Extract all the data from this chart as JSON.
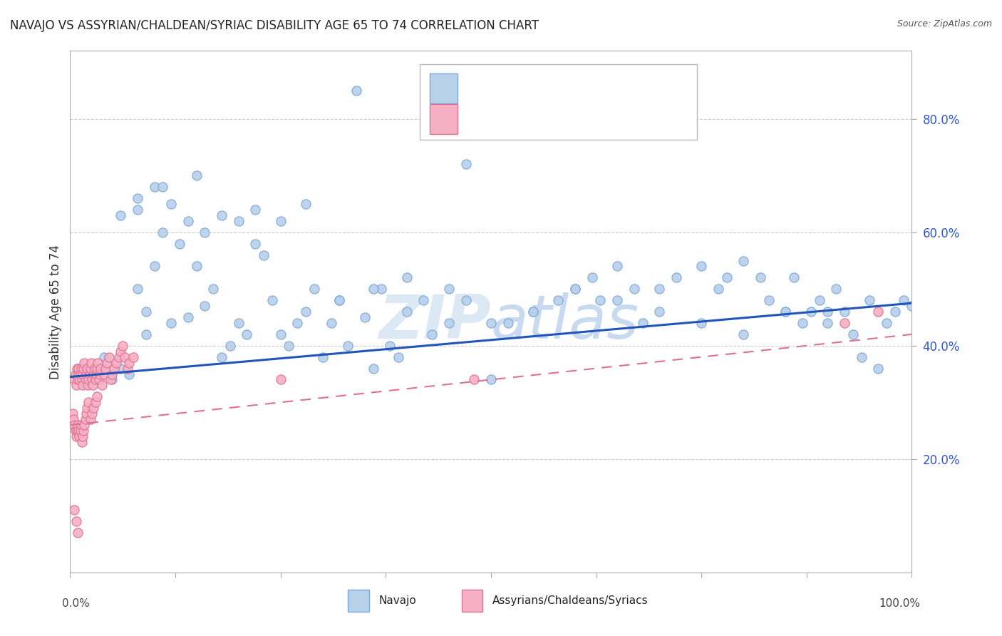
{
  "title": "NAVAJO VS ASSYRIAN/CHALDEAN/SYRIAC DISABILITY AGE 65 TO 74 CORRELATION CHART",
  "source": "Source: ZipAtlas.com",
  "ylabel": "Disability Age 65 to 74",
  "legend_label1": "Navajo",
  "legend_label2": "Assyrians/Chaldeans/Syriacs",
  "color_blue_face": "#b8d0ea",
  "color_blue_edge": "#7aa8d8",
  "color_blue_line": "#2255bb",
  "color_pink_face": "#f5b0c5",
  "color_pink_edge": "#e07090",
  "color_pink_line": "#e07090",
  "color_legend_text_r": "#3355cc",
  "color_legend_text_n": "#000000",
  "watermark_color": "#dde8f5",
  "background": "#ffffff",
  "navajo_x": [
    0.02,
    0.04,
    0.05,
    0.06,
    0.07,
    0.08,
    0.09,
    0.09,
    0.1,
    0.11,
    0.12,
    0.13,
    0.14,
    0.15,
    0.16,
    0.17,
    0.18,
    0.19,
    0.2,
    0.21,
    0.22,
    0.23,
    0.24,
    0.25,
    0.26,
    0.27,
    0.28,
    0.29,
    0.3,
    0.31,
    0.32,
    0.33,
    0.35,
    0.36,
    0.37,
    0.38,
    0.39,
    0.4,
    0.42,
    0.43,
    0.45,
    0.47,
    0.5,
    0.52,
    0.55,
    0.58,
    0.6,
    0.62,
    0.63,
    0.65,
    0.67,
    0.68,
    0.7,
    0.72,
    0.75,
    0.77,
    0.78,
    0.8,
    0.82,
    0.83,
    0.85,
    0.86,
    0.87,
    0.88,
    0.89,
    0.9,
    0.91,
    0.92,
    0.93,
    0.94,
    0.95,
    0.96,
    0.97,
    0.98,
    0.99,
    1.0,
    0.06,
    0.08,
    0.1,
    0.12,
    0.14,
    0.16,
    0.18,
    0.2,
    0.22,
    0.25,
    0.28,
    0.32,
    0.36,
    0.4,
    0.45,
    0.5,
    0.55,
    0.6,
    0.65,
    0.7,
    0.75,
    0.8,
    0.85,
    0.9,
    0.34,
    0.47,
    0.08,
    0.11,
    0.15
  ],
  "navajo_y": [
    0.36,
    0.38,
    0.34,
    0.36,
    0.35,
    0.5,
    0.46,
    0.42,
    0.54,
    0.6,
    0.44,
    0.58,
    0.45,
    0.54,
    0.47,
    0.5,
    0.38,
    0.4,
    0.44,
    0.42,
    0.58,
    0.56,
    0.48,
    0.42,
    0.4,
    0.44,
    0.46,
    0.5,
    0.38,
    0.44,
    0.48,
    0.4,
    0.45,
    0.36,
    0.5,
    0.4,
    0.38,
    0.46,
    0.48,
    0.42,
    0.5,
    0.48,
    0.34,
    0.44,
    0.46,
    0.48,
    0.5,
    0.52,
    0.48,
    0.54,
    0.5,
    0.44,
    0.5,
    0.52,
    0.54,
    0.5,
    0.52,
    0.55,
    0.52,
    0.48,
    0.46,
    0.52,
    0.44,
    0.46,
    0.48,
    0.46,
    0.5,
    0.46,
    0.42,
    0.38,
    0.48,
    0.36,
    0.44,
    0.46,
    0.48,
    0.47,
    0.63,
    0.64,
    0.68,
    0.65,
    0.62,
    0.6,
    0.63,
    0.62,
    0.64,
    0.62,
    0.65,
    0.48,
    0.5,
    0.52,
    0.44,
    0.44,
    0.46,
    0.5,
    0.48,
    0.46,
    0.44,
    0.42,
    0.46,
    0.44,
    0.85,
    0.72,
    0.66,
    0.68,
    0.7
  ],
  "assyrian_x": [
    0.005,
    0.006,
    0.007,
    0.008,
    0.009,
    0.01,
    0.01,
    0.011,
    0.012,
    0.013,
    0.014,
    0.015,
    0.015,
    0.016,
    0.017,
    0.018,
    0.019,
    0.02,
    0.021,
    0.022,
    0.023,
    0.024,
    0.025,
    0.026,
    0.027,
    0.028,
    0.029,
    0.03,
    0.031,
    0.032,
    0.033,
    0.034,
    0.035,
    0.036,
    0.038,
    0.04,
    0.042,
    0.044,
    0.046,
    0.048,
    0.05,
    0.052,
    0.055,
    0.058,
    0.06,
    0.062,
    0.065,
    0.068,
    0.07,
    0.075,
    0.003,
    0.004,
    0.005,
    0.006,
    0.007,
    0.008,
    0.009,
    0.01,
    0.011,
    0.012,
    0.013,
    0.014,
    0.015,
    0.016,
    0.017,
    0.018,
    0.019,
    0.02,
    0.022,
    0.024,
    0.026,
    0.028,
    0.03,
    0.032,
    0.005,
    0.007,
    0.009,
    0.25,
    0.48,
    0.92,
    0.96
  ],
  "assyrian_y": [
    0.34,
    0.35,
    0.33,
    0.36,
    0.34,
    0.35,
    0.36,
    0.34,
    0.35,
    0.36,
    0.34,
    0.35,
    0.33,
    0.36,
    0.37,
    0.34,
    0.35,
    0.36,
    0.33,
    0.34,
    0.35,
    0.36,
    0.37,
    0.34,
    0.33,
    0.35,
    0.36,
    0.34,
    0.35,
    0.36,
    0.37,
    0.34,
    0.35,
    0.36,
    0.33,
    0.35,
    0.36,
    0.37,
    0.38,
    0.34,
    0.35,
    0.36,
    0.37,
    0.38,
    0.39,
    0.4,
    0.38,
    0.36,
    0.37,
    0.38,
    0.28,
    0.27,
    0.26,
    0.25,
    0.24,
    0.25,
    0.26,
    0.25,
    0.24,
    0.25,
    0.26,
    0.23,
    0.24,
    0.25,
    0.26,
    0.27,
    0.28,
    0.29,
    0.3,
    0.27,
    0.28,
    0.29,
    0.3,
    0.31,
    0.11,
    0.09,
    0.07,
    0.34,
    0.34,
    0.44,
    0.46
  ],
  "xlim": [
    0.0,
    1.0
  ],
  "ylim": [
    0.0,
    0.92
  ],
  "yticks": [
    0.2,
    0.4,
    0.6,
    0.8
  ],
  "ytick_labels": [
    "20.0%",
    "40.0%",
    "60.0%",
    "80.0%"
  ],
  "navajo_line_y0": 0.345,
  "navajo_line_y1": 0.475,
  "assyrian_line_y0": 0.26,
  "assyrian_line_y1": 0.42
}
